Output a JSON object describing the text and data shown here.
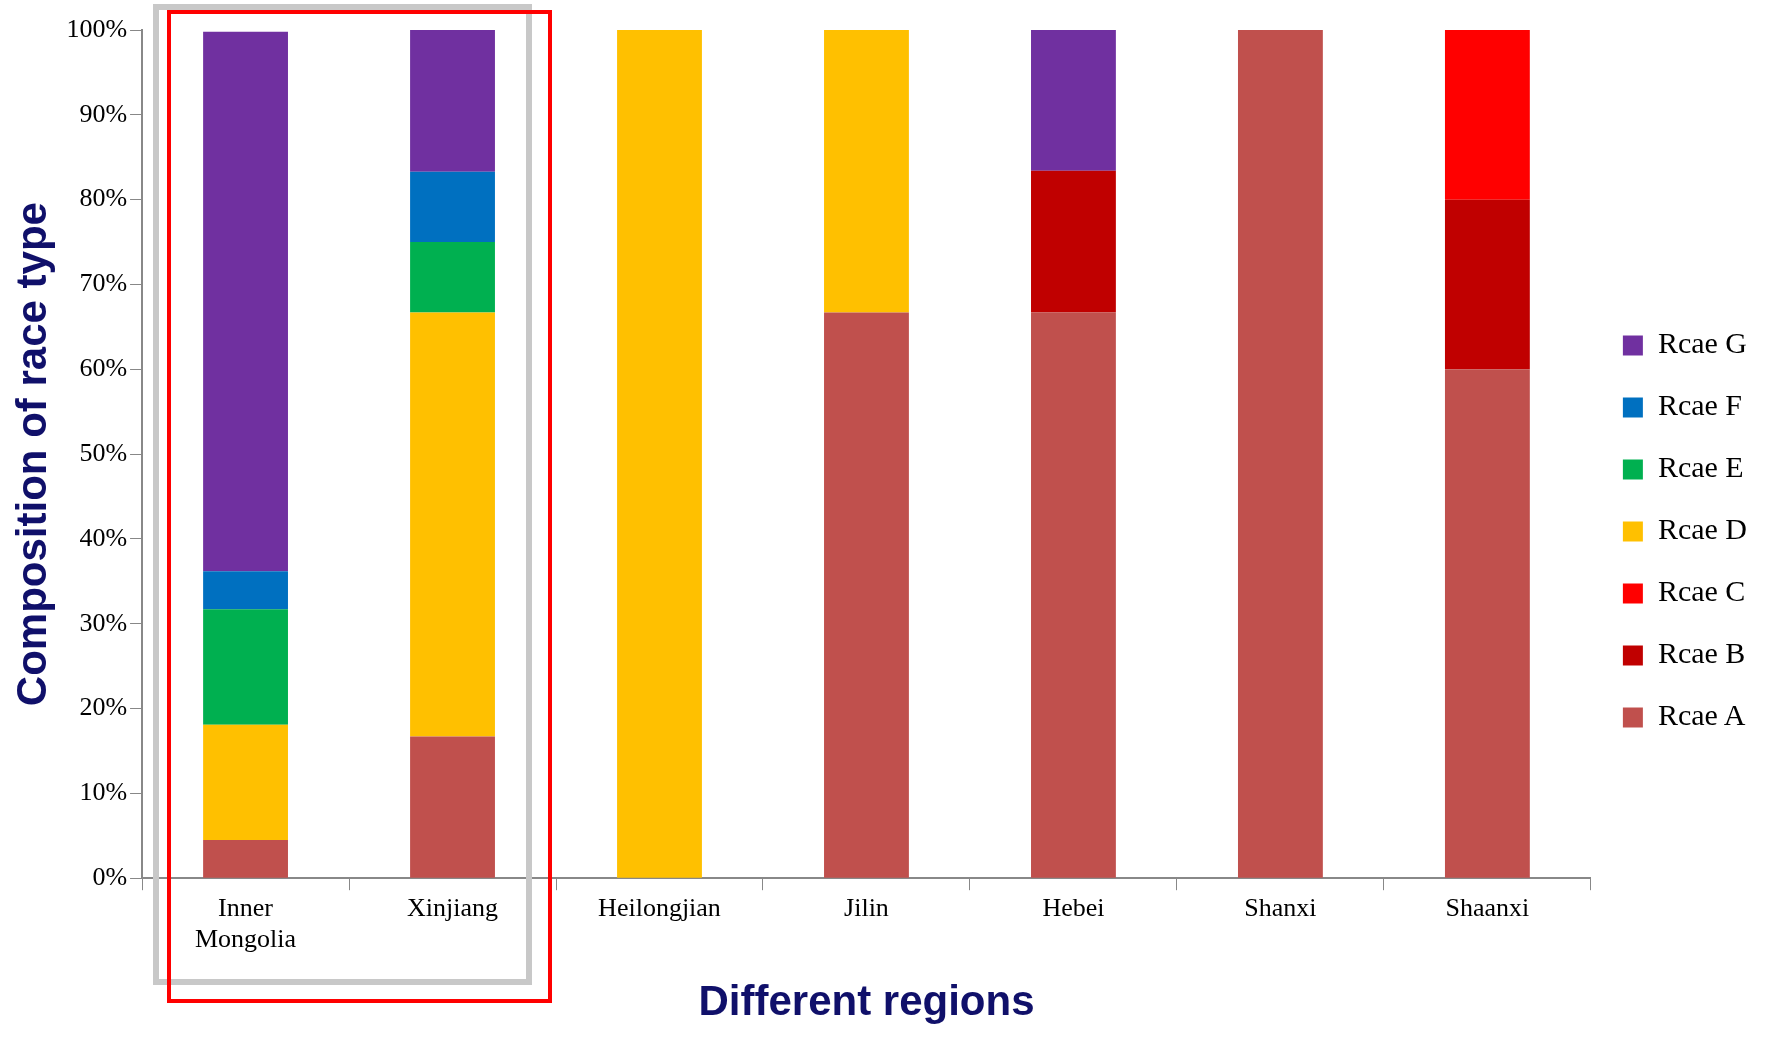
{
  "chart_data": {
    "type": "bar",
    "stacked": true,
    "xlabel": "Different regions",
    "ylabel": "Composition of race type",
    "categories": [
      "Inner Mongolia",
      "Xinjiang",
      "Heilongjian",
      "Jilin",
      "Hebei",
      "Shanxi",
      "Shaanxi"
    ],
    "series": [
      {
        "name": "Rcae A",
        "color": "#c0504d",
        "values": [
          4.5,
          16.7,
          null,
          66.7,
          66.7,
          100,
          60
        ]
      },
      {
        "name": "Rcae B",
        "color": "#c00000",
        "values": [
          null,
          null,
          null,
          null,
          16.7,
          null,
          20
        ]
      },
      {
        "name": "Rcae C",
        "color": "#ff0000",
        "values": [
          null,
          null,
          null,
          null,
          null,
          null,
          20
        ]
      },
      {
        "name": "Rcae D",
        "color": "#ffc000",
        "values": [
          13.6,
          50,
          100,
          33.3,
          null,
          null,
          null
        ]
      },
      {
        "name": "Rcae E",
        "color": "#00b050",
        "values": [
          13.6,
          8.3,
          null,
          null,
          null,
          null,
          null
        ]
      },
      {
        "name": "Rcae F",
        "color": "#0070c0",
        "values": [
          4.5,
          8.3,
          null,
          null,
          null,
          null,
          null
        ]
      },
      {
        "name": "Rcae G",
        "color": "#7030a0",
        "values": [
          63.6,
          16.7,
          null,
          null,
          16.7,
          null,
          null
        ]
      }
    ],
    "ylim": [
      0,
      100
    ],
    "yticks": [
      {
        "value": 0,
        "label": "0%"
      },
      {
        "value": 10,
        "label": "10%"
      },
      {
        "value": 20,
        "label": "20%"
      },
      {
        "value": 30,
        "label": "30%"
      },
      {
        "value": 40,
        "label": "40%"
      },
      {
        "value": 50,
        "label": "50%"
      },
      {
        "value": 60,
        "label": "60%"
      },
      {
        "value": 70,
        "label": "70%"
      },
      {
        "value": 80,
        "label": "80%"
      },
      {
        "value": 90,
        "label": "90%"
      },
      {
        "value": 100,
        "label": "100%"
      }
    ],
    "grid": false,
    "legend": "right"
  }
}
